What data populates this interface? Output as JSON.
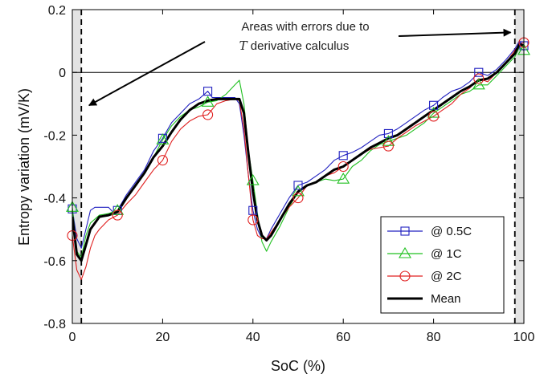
{
  "chart_data": {
    "type": "line",
    "title": "",
    "xlabel": "SoC (%)",
    "ylabel": "Entropy variation (mV/K)",
    "xlim": [
      0,
      100
    ],
    "ylim": [
      -0.8,
      0.2
    ],
    "xticks": [
      0,
      20,
      40,
      60,
      80,
      100
    ],
    "xtick_labels": [
      "0",
      "20",
      "40",
      "60",
      "80",
      "100"
    ],
    "yticks": [
      -0.8,
      -0.6,
      -0.4,
      -0.2,
      0,
      0.2
    ],
    "ytick_labels": [
      "-0.8",
      "-0.6",
      "-0.4",
      "-0.2",
      "0",
      "0.2"
    ],
    "grid": false,
    "legend_position": "bottom-right",
    "zero_line": 0,
    "shaded_regions": [
      [
        0,
        2
      ],
      [
        98,
        100
      ]
    ],
    "dashed_vlines": [
      2,
      98
    ],
    "annotation": {
      "line1": "Areas with errors due to",
      "line2_var": "T",
      "line2_rest": " derivative calculus",
      "arrow_targets": [
        [
          3,
          -0.1
        ],
        [
          98.5,
          0.135
        ]
      ]
    },
    "marker_x": [
      0,
      10,
      20,
      30,
      40,
      50,
      60,
      70,
      80,
      90,
      100
    ],
    "series": [
      {
        "name": "@ 0.5C",
        "color": "#2020c0",
        "marker": "square",
        "x": [
          0,
          1,
          2,
          3,
          4,
          5,
          6,
          8,
          9,
          10,
          12,
          14,
          16,
          18,
          20,
          22,
          24,
          26,
          28,
          30,
          31,
          32,
          33,
          34,
          35,
          36,
          37,
          38,
          39,
          40,
          41,
          42,
          43,
          44,
          46,
          48,
          50,
          52,
          54,
          56,
          58,
          60,
          62,
          64,
          66,
          68,
          70,
          72,
          74,
          76,
          78,
          80,
          82,
          84,
          86,
          88,
          90,
          92,
          94,
          96,
          98,
          99,
          100
        ],
        "y": [
          -0.435,
          -0.53,
          -0.56,
          -0.5,
          -0.44,
          -0.43,
          -0.43,
          -0.43,
          -0.445,
          -0.44,
          -0.39,
          -0.35,
          -0.31,
          -0.25,
          -0.21,
          -0.16,
          -0.13,
          -0.1,
          -0.085,
          -0.06,
          -0.08,
          -0.08,
          -0.08,
          -0.08,
          -0.08,
          -0.08,
          -0.1,
          -0.2,
          -0.33,
          -0.44,
          -0.5,
          -0.53,
          -0.53,
          -0.5,
          -0.45,
          -0.4,
          -0.36,
          -0.35,
          -0.33,
          -0.31,
          -0.28,
          -0.265,
          -0.255,
          -0.24,
          -0.22,
          -0.2,
          -0.195,
          -0.18,
          -0.16,
          -0.14,
          -0.12,
          -0.105,
          -0.08,
          -0.06,
          -0.05,
          -0.03,
          0.0,
          -0.01,
          0.01,
          0.04,
          0.075,
          0.1,
          0.085
        ]
      },
      {
        "name": "@ 1C",
        "color": "#20c020",
        "marker": "triangle",
        "x": [
          0,
          1,
          2,
          3,
          4,
          6,
          8,
          10,
          12,
          14,
          16,
          18,
          20,
          22,
          24,
          26,
          28,
          30,
          32,
          34,
          36,
          37,
          38,
          39,
          40,
          41,
          42,
          43,
          44,
          46,
          48,
          50,
          52,
          54,
          56,
          58,
          60,
          62,
          64,
          66,
          68,
          70,
          72,
          74,
          76,
          78,
          80,
          82,
          84,
          86,
          88,
          90,
          92,
          94,
          96,
          98,
          99,
          100
        ],
        "y": [
          -0.43,
          -0.57,
          -0.59,
          -0.52,
          -0.48,
          -0.455,
          -0.45,
          -0.44,
          -0.4,
          -0.36,
          -0.32,
          -0.27,
          -0.215,
          -0.17,
          -0.14,
          -0.12,
          -0.11,
          -0.095,
          -0.09,
          -0.07,
          -0.04,
          -0.025,
          -0.1,
          -0.25,
          -0.345,
          -0.45,
          -0.54,
          -0.57,
          -0.54,
          -0.49,
          -0.43,
          -0.38,
          -0.36,
          -0.35,
          -0.34,
          -0.345,
          -0.34,
          -0.3,
          -0.28,
          -0.25,
          -0.23,
          -0.22,
          -0.21,
          -0.2,
          -0.18,
          -0.16,
          -0.13,
          -0.11,
          -0.09,
          -0.07,
          -0.06,
          -0.04,
          -0.04,
          -0.01,
          0.02,
          0.05,
          0.08,
          0.07
        ]
      },
      {
        "name": "@ 2C",
        "color": "#e02020",
        "marker": "circle",
        "x": [
          0,
          1,
          2,
          3,
          4,
          5,
          6,
          8,
          10,
          12,
          14,
          16,
          18,
          20,
          22,
          24,
          26,
          28,
          30,
          32,
          34,
          36,
          37,
          38,
          39,
          40,
          41,
          42,
          43,
          44,
          46,
          48,
          50,
          52,
          54,
          56,
          58,
          60,
          62,
          64,
          66,
          68,
          70,
          72,
          74,
          76,
          78,
          80,
          82,
          84,
          86,
          88,
          90,
          92,
          94,
          96,
          98,
          99,
          100
        ],
        "y": [
          -0.52,
          -0.63,
          -0.66,
          -0.62,
          -0.56,
          -0.52,
          -0.5,
          -0.47,
          -0.455,
          -0.42,
          -0.39,
          -0.35,
          -0.31,
          -0.28,
          -0.22,
          -0.18,
          -0.155,
          -0.14,
          -0.135,
          -0.1,
          -0.09,
          -0.085,
          -0.09,
          -0.18,
          -0.33,
          -0.47,
          -0.52,
          -0.53,
          -0.53,
          -0.51,
          -0.47,
          -0.43,
          -0.4,
          -0.36,
          -0.35,
          -0.33,
          -0.32,
          -0.3,
          -0.28,
          -0.26,
          -0.245,
          -0.24,
          -0.235,
          -0.21,
          -0.19,
          -0.17,
          -0.155,
          -0.14,
          -0.12,
          -0.1,
          -0.07,
          -0.05,
          -0.02,
          -0.03,
          0.0,
          0.03,
          0.07,
          0.09,
          0.095
        ]
      },
      {
        "name": "Mean",
        "color": "#000000",
        "marker": "none",
        "x": [
          0,
          1,
          2,
          3,
          4,
          6,
          8,
          10,
          12,
          14,
          16,
          18,
          20,
          22,
          24,
          26,
          28,
          30,
          32,
          34,
          36,
          37,
          38,
          39,
          40,
          41,
          42,
          43,
          44,
          46,
          48,
          50,
          52,
          54,
          56,
          58,
          60,
          62,
          64,
          66,
          68,
          70,
          72,
          74,
          76,
          78,
          80,
          82,
          84,
          86,
          88,
          90,
          92,
          94,
          96,
          98,
          99,
          100
        ],
        "y": [
          -0.46,
          -0.58,
          -0.6,
          -0.55,
          -0.5,
          -0.46,
          -0.455,
          -0.445,
          -0.4,
          -0.36,
          -0.32,
          -0.27,
          -0.235,
          -0.19,
          -0.15,
          -0.12,
          -0.1,
          -0.09,
          -0.085,
          -0.085,
          -0.085,
          -0.085,
          -0.13,
          -0.26,
          -0.38,
          -0.47,
          -0.52,
          -0.535,
          -0.52,
          -0.47,
          -0.42,
          -0.38,
          -0.36,
          -0.35,
          -0.33,
          -0.31,
          -0.3,
          -0.28,
          -0.26,
          -0.24,
          -0.225,
          -0.21,
          -0.2,
          -0.18,
          -0.16,
          -0.14,
          -0.12,
          -0.1,
          -0.08,
          -0.06,
          -0.045,
          -0.025,
          -0.02,
          0.0,
          0.03,
          0.06,
          0.09,
          0.085
        ]
      }
    ]
  }
}
